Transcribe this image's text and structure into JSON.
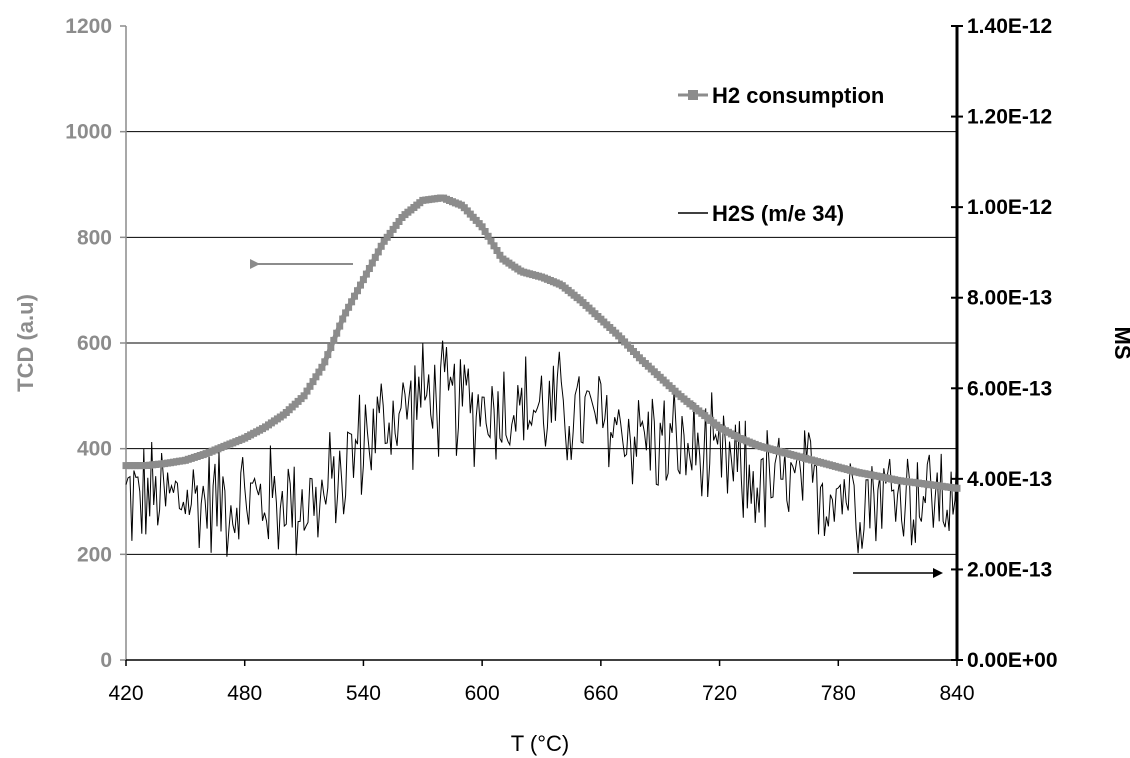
{
  "chart_data": {
    "type": "line",
    "title": "",
    "xlabel": "T (°C)",
    "ylabel_left": "TCD (a.u)",
    "ylabel_right": "MS",
    "xlim": [
      420,
      840
    ],
    "ylim_left": [
      0,
      1200
    ],
    "ylim_right": [
      0,
      1.4e-12
    ],
    "x_ticks": [
      "420",
      "480",
      "540",
      "600",
      "660",
      "720",
      "780",
      "840"
    ],
    "y_left_ticks": [
      "0",
      "200",
      "400",
      "600",
      "800",
      "1000",
      "1200"
    ],
    "y_right_ticks": [
      "0.00E+00",
      "2.00E-13",
      "4.00E-13",
      "6.00E-13",
      "8.00E-13",
      "1.00E-12",
      "1.20E-12",
      "1.40E-12"
    ],
    "grid": true,
    "legend_position": "top-right",
    "colors": {
      "h2": "#8c8c8c",
      "h2s": "#000000",
      "left_axis": "#8c8c8c",
      "right_axis": "#000000"
    },
    "series": [
      {
        "name": "H2 consumption",
        "axis": "left",
        "marker": "square",
        "x": [
          420,
          430,
          440,
          450,
          460,
          470,
          480,
          490,
          500,
          510,
          520,
          530,
          540,
          550,
          560,
          570,
          580,
          590,
          600,
          610,
          620,
          630,
          640,
          650,
          660,
          670,
          680,
          690,
          700,
          710,
          720,
          730,
          740,
          750,
          760,
          770,
          780,
          790,
          800,
          810,
          820,
          830,
          840
        ],
        "values": [
          368,
          368,
          372,
          378,
          390,
          405,
          420,
          440,
          465,
          500,
          560,
          650,
          720,
          790,
          840,
          870,
          875,
          860,
          820,
          760,
          735,
          725,
          710,
          680,
          645,
          610,
          570,
          535,
          500,
          470,
          440,
          420,
          405,
          395,
          385,
          375,
          365,
          355,
          348,
          340,
          335,
          330,
          325
        ]
      },
      {
        "name": "H2S (m/e 34)",
        "axis": "right",
        "marker": "none",
        "x_start": 420,
        "x_end": 840,
        "baseline": [
          [
            420,
            3.6e-13
          ],
          [
            520,
            3.5e-13
          ],
          [
            540,
            4.9e-13
          ],
          [
            570,
            5.8e-13
          ],
          [
            600,
            5.6e-13
          ],
          [
            640,
            5.5e-13
          ],
          [
            680,
            5e-13
          ],
          [
            710,
            4.5e-13
          ],
          [
            740,
            3.9e-13
          ],
          [
            780,
            3.8e-13
          ],
          [
            840,
            3.6e-13
          ]
        ],
        "noise_amplitude": 1.6e-13,
        "points": 420,
        "range_observed": [
          1.8e-13,
          7.1e-13
        ]
      }
    ],
    "annotations": [
      {
        "type": "arrow",
        "direction": "left",
        "axis": "left",
        "meaning": "H2 consumption read on TCD axis"
      },
      {
        "type": "arrow",
        "direction": "right",
        "axis": "right",
        "meaning": "H2S read on MS axis"
      }
    ]
  }
}
